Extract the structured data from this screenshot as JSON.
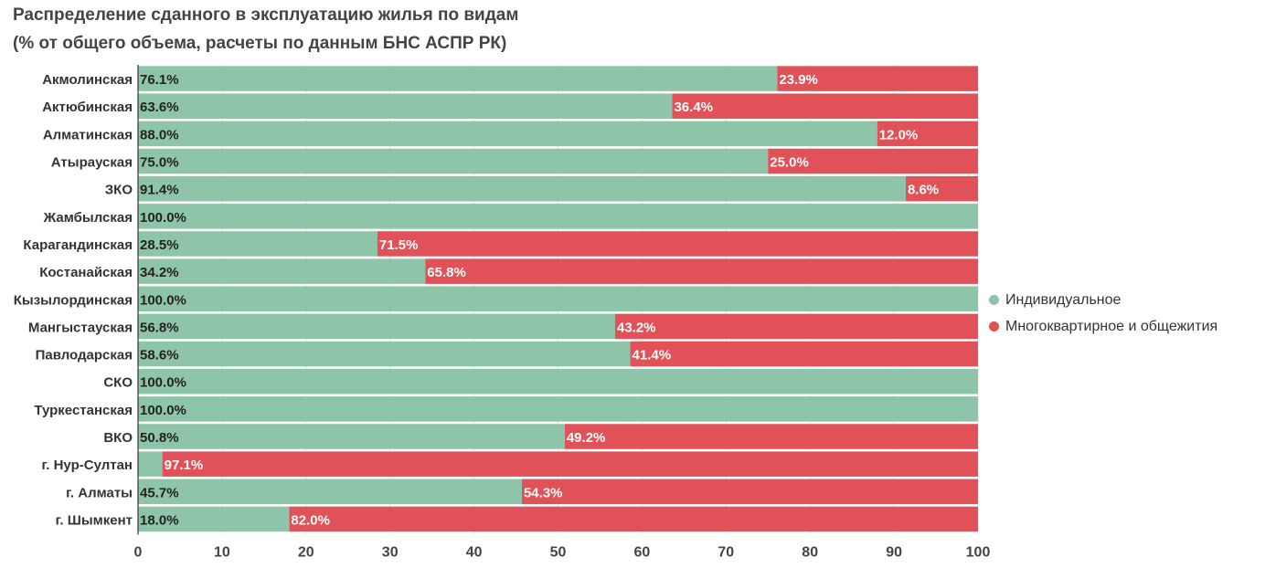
{
  "title_line1": "Распределение сданного в эксплуатацию жилья по видам",
  "title_line2": "(% от общего объема, расчеты по данным БНС АСПР РК)",
  "colors": {
    "individual": "#8ec5a8",
    "multi": "#e05257"
  },
  "legend": [
    {
      "label": "Индивидуальное",
      "color": "#8ec5a8"
    },
    {
      "label": "Многоквартирное и общежития",
      "color": "#e05257"
    }
  ],
  "chart_data": {
    "type": "bar",
    "orientation": "horizontal",
    "stacked": true,
    "categories": [
      "Акмолинская",
      "Актюбинская",
      "Алматинская",
      "Атырауская",
      "ЗКО",
      "Жамбылская",
      "Карагандинская",
      "Костанайская",
      "Кызылординская",
      "Мангыстауская",
      "Павлодарская",
      "СКО",
      "Туркестанская",
      "ВКО",
      "г. Нур-Султан",
      "г. Алматы",
      "г. Шымкент"
    ],
    "series": [
      {
        "name": "Индивидуальное",
        "values": [
          76.1,
          63.6,
          88.0,
          75.0,
          91.4,
          100.0,
          28.5,
          34.2,
          100.0,
          56.8,
          58.6,
          100.0,
          100.0,
          50.8,
          2.9,
          45.7,
          18.0
        ],
        "labels": [
          "76.1%",
          "63.6%",
          "88.0%",
          "75.0%",
          "91.4%",
          "100.0%",
          "28.5%",
          "34.2%",
          "100.0%",
          "56.8%",
          "58.6%",
          "100.0%",
          "100.0%",
          "50.8%",
          "",
          "45.7%",
          "18.0%"
        ]
      },
      {
        "name": "Многоквартирное и общежития",
        "values": [
          23.9,
          36.4,
          12.0,
          25.0,
          8.6,
          0,
          71.5,
          65.8,
          0,
          43.2,
          41.4,
          0,
          0,
          49.2,
          97.1,
          54.3,
          82.0
        ],
        "labels": [
          "23.9%",
          "36.4%",
          "12.0%",
          "25.0%",
          "8.6%",
          "",
          "71.5%",
          "65.8%",
          "",
          "43.2%",
          "41.4%",
          "",
          "",
          "49.2%",
          "97.1%",
          "54.3%",
          "82.0%"
        ]
      }
    ],
    "xlim": [
      0,
      100
    ],
    "xticks": [
      "0",
      "10",
      "20",
      "30",
      "40",
      "50",
      "60",
      "70",
      "80",
      "90",
      "100"
    ],
    "grid": true,
    "legend_position": "right"
  }
}
